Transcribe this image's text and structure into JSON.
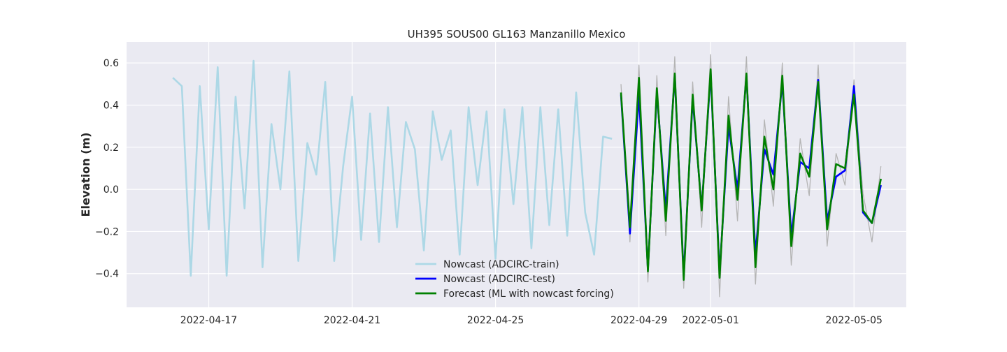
{
  "chart_data": {
    "type": "line",
    "title": "UH395 SOUS00 GL163 Manzanillo Mexico",
    "xlabel": "",
    "ylabel": "Elevation (m)",
    "x_range": [
      "2022-04-14T17:00",
      "2022-05-06T11:00"
    ],
    "ylim": [
      -0.56,
      0.7
    ],
    "grid": true,
    "legend_placement": "lower center",
    "x_ticks": [
      "2022-04-17",
      "2022-04-21",
      "2022-04-25",
      "2022-04-29",
      "2022-05-01",
      "2022-05-05"
    ],
    "y_ticks": [
      -0.4,
      -0.2,
      0.0,
      0.2,
      0.4,
      0.6
    ],
    "y_tick_labels": [
      "−0.4",
      "−0.2",
      "0.0",
      "0.2",
      "0.4",
      "0.6"
    ],
    "legend": [
      {
        "label": "Nowcast (ADCIRC-train)",
        "color": "#add8e6"
      },
      {
        "label": "Nowcast (ADCIRC-test)",
        "color": "#0000ff"
      },
      {
        "label": "Forecast (ML with nowcast forcing)",
        "color": "#008000"
      }
    ],
    "series": [
      {
        "name": "Nowcast (ADCIRC-train)",
        "color": "#add8e6",
        "x": [
          "2022-04-16T00:00",
          "2022-04-16T06:00",
          "2022-04-16T12:00",
          "2022-04-16T18:00",
          "2022-04-17T00:00",
          "2022-04-17T06:00",
          "2022-04-17T12:00",
          "2022-04-17T18:00",
          "2022-04-18T00:00",
          "2022-04-18T06:00",
          "2022-04-18T12:00",
          "2022-04-18T18:00",
          "2022-04-19T00:00",
          "2022-04-19T06:00",
          "2022-04-19T12:00",
          "2022-04-19T18:00",
          "2022-04-20T00:00",
          "2022-04-20T06:00",
          "2022-04-20T12:00",
          "2022-04-20T18:00",
          "2022-04-21T00:00",
          "2022-04-21T06:00",
          "2022-04-21T12:00",
          "2022-04-21T18:00",
          "2022-04-22T00:00",
          "2022-04-22T06:00",
          "2022-04-22T12:00",
          "2022-04-22T18:00",
          "2022-04-23T00:00",
          "2022-04-23T06:00",
          "2022-04-23T12:00",
          "2022-04-23T18:00",
          "2022-04-24T00:00",
          "2022-04-24T06:00",
          "2022-04-24T12:00",
          "2022-04-24T18:00",
          "2022-04-25T00:00",
          "2022-04-25T06:00",
          "2022-04-25T12:00",
          "2022-04-25T18:00",
          "2022-04-26T00:00",
          "2022-04-26T06:00",
          "2022-04-26T12:00",
          "2022-04-26T18:00",
          "2022-04-27T00:00",
          "2022-04-27T06:00",
          "2022-04-27T12:00",
          "2022-04-27T18:00",
          "2022-04-28T00:00",
          "2022-04-28T06:00"
        ],
        "y": [
          0.53,
          0.49,
          -0.41,
          0.49,
          -0.19,
          0.58,
          -0.41,
          0.44,
          -0.09,
          0.61,
          -0.37,
          0.31,
          0.0,
          0.56,
          -0.34,
          0.22,
          0.07,
          0.51,
          -0.34,
          0.11,
          0.44,
          -0.24,
          0.36,
          -0.25,
          0.39,
          -0.18,
          0.32,
          0.19,
          -0.29,
          0.37,
          0.14,
          0.28,
          -0.31,
          0.39,
          0.02,
          0.37,
          -0.33,
          0.38,
          -0.07,
          0.39,
          -0.28,
          0.39,
          -0.17,
          0.38,
          -0.22,
          0.46,
          -0.11,
          -0.31,
          0.25,
          0.24
        ]
      },
      {
        "name": "Nowcast (ADCIRC-test)",
        "color": "#0000ff",
        "x": [
          "2022-04-28T12:00",
          "2022-04-28T18:00",
          "2022-04-29T00:00",
          "2022-04-29T06:00",
          "2022-04-29T12:00",
          "2022-04-29T18:00",
          "2022-04-30T00:00",
          "2022-04-30T06:00",
          "2022-04-30T12:00",
          "2022-04-30T18:00",
          "2022-05-01T00:00",
          "2022-05-01T06:00",
          "2022-05-01T12:00",
          "2022-05-01T18:00",
          "2022-05-02T00:00",
          "2022-05-02T06:00",
          "2022-05-02T12:00",
          "2022-05-02T18:00",
          "2022-05-03T00:00",
          "2022-05-03T06:00",
          "2022-05-03T12:00",
          "2022-05-03T18:00",
          "2022-05-04T00:00",
          "2022-05-04T06:00",
          "2022-05-04T12:00",
          "2022-05-04T18:00",
          "2022-05-05T00:00",
          "2022-05-05T06:00",
          "2022-05-05T12:00",
          "2022-05-05T18:00"
        ],
        "y": [
          0.45,
          -0.21,
          0.45,
          -0.38,
          0.46,
          -0.1,
          0.54,
          -0.41,
          0.43,
          -0.09,
          0.55,
          -0.4,
          0.3,
          0.0,
          0.54,
          -0.31,
          0.19,
          0.07,
          0.51,
          -0.22,
          0.13,
          0.1,
          0.52,
          -0.15,
          0.06,
          0.09,
          0.49,
          -0.11,
          -0.16,
          0.02
        ]
      },
      {
        "name": "Forecast (ML with nowcast forcing)",
        "color": "#008000",
        "x": [
          "2022-04-28T12:00",
          "2022-04-28T18:00",
          "2022-04-29T00:00",
          "2022-04-29T06:00",
          "2022-04-29T12:00",
          "2022-04-29T18:00",
          "2022-04-30T00:00",
          "2022-04-30T06:00",
          "2022-04-30T12:00",
          "2022-04-30T18:00",
          "2022-05-01T00:00",
          "2022-05-01T06:00",
          "2022-05-01T12:00",
          "2022-05-01T18:00",
          "2022-05-02T00:00",
          "2022-05-02T06:00",
          "2022-05-02T12:00",
          "2022-05-02T18:00",
          "2022-05-03T00:00",
          "2022-05-03T06:00",
          "2022-05-03T12:00",
          "2022-05-03T18:00",
          "2022-05-04T00:00",
          "2022-05-04T06:00",
          "2022-05-04T12:00",
          "2022-05-04T18:00",
          "2022-05-05T00:00",
          "2022-05-05T06:00",
          "2022-05-05T12:00",
          "2022-05-05T18:00"
        ],
        "y": [
          0.46,
          -0.18,
          0.53,
          -0.39,
          0.48,
          -0.15,
          0.55,
          -0.43,
          0.45,
          -0.1,
          0.57,
          -0.42,
          0.35,
          -0.05,
          0.55,
          -0.37,
          0.25,
          0.0,
          0.54,
          -0.27,
          0.17,
          0.06,
          0.51,
          -0.19,
          0.12,
          0.1,
          0.45,
          -0.1,
          -0.16,
          0.05
        ]
      },
      {
        "name": "",
        "color": "#b4b4b4",
        "x": [
          "2022-04-28T12:00",
          "2022-04-28T18:00",
          "2022-04-29T00:00",
          "2022-04-29T06:00",
          "2022-04-29T12:00",
          "2022-04-29T18:00",
          "2022-04-30T00:00",
          "2022-04-30T06:00",
          "2022-04-30T12:00",
          "2022-04-30T18:00",
          "2022-05-01T00:00",
          "2022-05-01T06:00",
          "2022-05-01T12:00",
          "2022-05-01T18:00",
          "2022-05-02T00:00",
          "2022-05-02T06:00",
          "2022-05-02T12:00",
          "2022-05-02T18:00",
          "2022-05-03T00:00",
          "2022-05-03T06:00",
          "2022-05-03T12:00",
          "2022-05-03T18:00",
          "2022-05-04T00:00",
          "2022-05-04T06:00",
          "2022-05-04T12:00",
          "2022-05-04T18:00",
          "2022-05-05T00:00",
          "2022-05-05T06:00",
          "2022-05-05T12:00",
          "2022-05-05T18:00"
        ],
        "y": [
          0.5,
          -0.25,
          0.59,
          -0.44,
          0.54,
          -0.22,
          0.63,
          -0.47,
          0.51,
          -0.18,
          0.64,
          -0.51,
          0.44,
          -0.15,
          0.63,
          -0.45,
          0.33,
          -0.08,
          0.6,
          -0.36,
          0.24,
          -0.03,
          0.59,
          -0.27,
          0.17,
          0.02,
          0.52,
          -0.02,
          -0.25,
          0.11
        ]
      }
    ]
  }
}
